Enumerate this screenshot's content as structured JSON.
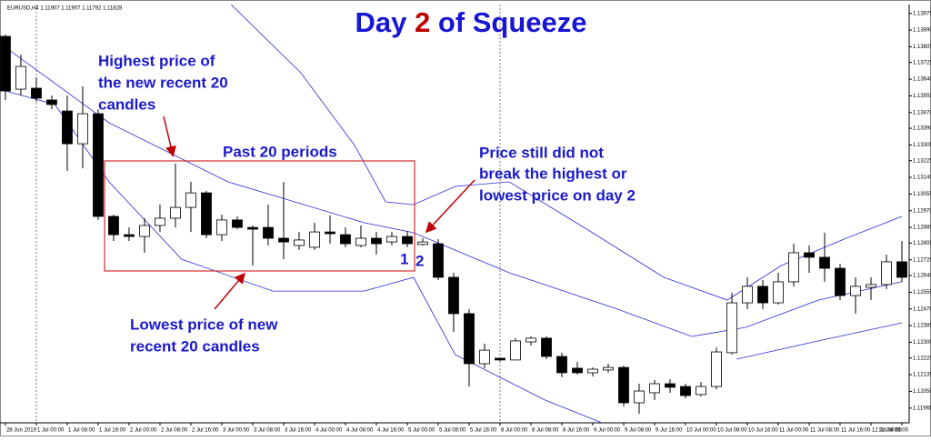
{
  "chart_data": {
    "type": "candlestick",
    "header_info": "EURUSD,H4  1.11907 1.11907 1.11792 1.11828",
    "title": {
      "day": "Day",
      "number": "2",
      "rest": "of Squeeze"
    },
    "annotations": {
      "highest": [
        "Highest price of",
        "the new recent 20",
        "candles"
      ],
      "period": "Past 20 periods",
      "still": [
        "Price still did not",
        "break the highest or",
        "lowest price on day 2"
      ],
      "lowest": [
        "Lowest price of new",
        "recent 20 candles"
      ],
      "day_one": "1",
      "day_two": "2"
    },
    "up_color": "#ffffff",
    "down_color": "#000000",
    "open": [
      1.13858,
      1.13589,
      1.13594,
      1.13534,
      1.13478,
      1.13311,
      1.13464,
      1.12941,
      1.12848,
      1.12839,
      1.12895,
      1.12932,
      1.12987,
      1.13061,
      1.12848,
      1.12923,
      1.12885,
      1.12885,
      1.1283,
      1.12793,
      1.12784,
      1.12862,
      1.12848,
      1.12793,
      1.1283,
      1.12811,
      1.12839,
      1.12798,
      1.12802,
      1.12631,
      1.12446,
      1.12191,
      1.12219,
      1.1221,
      1.12302,
      1.12321,
      1.12228,
      1.12168,
      1.12145,
      1.12159,
      1.12172,
      1.11992,
      1.12043,
      1.12089,
      1.12075,
      1.12034,
      1.12075,
      1.12247,
      1.12501,
      1.12585,
      1.12501,
      1.12608,
      1.12756,
      1.12733,
      1.12677,
      1.12538,
      1.1258,
      1.12594,
      1.1271
    ],
    "high": [
      1.13867,
      1.13765,
      1.13649,
      1.13557,
      1.13557,
      1.13603,
      1.13487,
      1.1295,
      1.12885,
      1.12932,
      1.13001,
      1.1321,
      1.13117,
      1.13071,
      1.1295,
      1.12941,
      1.12895,
      1.13001,
      1.13117,
      1.12862,
      1.12909,
      1.12946,
      1.12885,
      1.12895,
      1.12862,
      1.12862,
      1.12867,
      1.1283,
      1.12825,
      1.12654,
      1.12469,
      1.12293,
      1.12219,
      1.12321,
      1.1233,
      1.1233,
      1.12247,
      1.122,
      1.12172,
      1.12191,
      1.12182,
      1.12089,
      1.12108,
      1.12112,
      1.12089,
      1.12098,
      1.12274,
      1.12552,
      1.12631,
      1.12617,
      1.12654,
      1.12802,
      1.12793,
      1.12858,
      1.127,
      1.12631,
      1.12631,
      1.12747,
      1.12816
    ],
    "low": [
      1.13534,
      1.13557,
      1.13524,
      1.13487,
      1.13173,
      1.13186,
      1.12923,
      1.12816,
      1.12816,
      1.12756,
      1.12862,
      1.12885,
      1.12862,
      1.1283,
      1.12816,
      1.12876,
      1.12691,
      1.12793,
      1.12723,
      1.1277,
      1.1277,
      1.12802,
      1.12784,
      1.12784,
      1.12747,
      1.12793,
      1.12784,
      1.12793,
      1.12617,
      1.12353,
      1.12075,
      1.12168,
      1.12205,
      1.1221,
      1.12284,
      1.12214,
      1.12122,
      1.12135,
      1.12126,
      1.12145,
      1.11973,
      1.11936,
      1.12006,
      1.12043,
      1.12015,
      1.12024,
      1.12061,
      1.12237,
      1.12469,
      1.12469,
      1.12492,
      1.12585,
      1.12654,
      1.12608,
      1.12515,
      1.12446,
      1.12515,
      1.12571,
      1.12608
    ],
    "close": [
      1.1358,
      1.13705,
      1.13543,
      1.13511,
      1.13311,
      1.13464,
      1.12941,
      1.12848,
      1.12839,
      1.12895,
      1.12932,
      1.12987,
      1.13061,
      1.12848,
      1.12923,
      1.12885,
      1.12876,
      1.1283,
      1.12811,
      1.12821,
      1.12862,
      1.12853,
      1.12802,
      1.1283,
      1.12802,
      1.12839,
      1.12802,
      1.12811,
      1.12631,
      1.12446,
      1.12191,
      1.1226,
      1.1221,
      1.12307,
      1.12321,
      1.12228,
      1.12145,
      1.12145,
      1.12163,
      1.12172,
      1.11992,
      1.12052,
      1.12089,
      1.12071,
      1.12029,
      1.12075,
      1.12251,
      1.12501,
      1.12585,
      1.12501,
      1.12608,
      1.12756,
      1.12733,
      1.12677,
      1.12538,
      1.12585,
      1.12594,
      1.1271,
      1.12631
    ],
    "bands": [
      {
        "color": "#2b2bd9",
        "x": [
          14.6,
          19.1,
          22.6,
          24.6,
          26.4,
          29.1,
          32.6,
          37.9,
          42.6,
          46.7,
          50.2,
          54.4,
          58.0
        ],
        "values": [
          1.1402,
          1.13673,
          1.13302,
          1.13015,
          1.13001,
          1.13094,
          1.13117,
          1.12862,
          1.12631,
          1.12515,
          1.12691,
          1.1283,
          1.12941
        ]
      },
      {
        "color": "#2b2bd9",
        "x": [
          0,
          6.7,
          14.4,
          23.2,
          26.4,
          32.6,
          39.6,
          44.4,
          47.9,
          52.6,
          58.0
        ],
        "values": [
          1.13802,
          1.13418,
          1.13117,
          1.12909,
          1.12858,
          1.12654,
          1.12469,
          1.1233,
          1.12376,
          1.12515,
          1.12608
        ]
      },
      {
        "color": "#2b2bd9",
        "x": [
          0,
          3.2,
          6.7,
          11.4,
          17.3,
          23.2,
          26.4,
          29.1,
          34.9,
          39.6,
          43.0,
          47.3,
          52.6,
          58.0
        ],
        "values": [
          1.1358,
          1.13511,
          1.13117,
          1.12723,
          1.12561,
          1.12561,
          1.12631,
          1.12237,
          1.12006,
          1.11858,
          null,
          1.12214,
          1.12307,
          1.12399
        ]
      }
    ],
    "period_separators": [
      2,
      32
    ],
    "xlim": [
      -0.35,
      58.47
    ],
    "ylim": [
      1.1189,
      1.1402
    ],
    "xticks": [
      {
        "value": 0,
        "label": "28 Jun 2019"
      },
      {
        "value": 2,
        "label": "1 Jul 00:00"
      },
      {
        "value": 4,
        "label": "1 Jul 08:00"
      },
      {
        "value": 6,
        "label": "1 Jul 16:00"
      },
      {
        "value": 8,
        "label": "2 Jul 00:00"
      },
      {
        "value": 10,
        "label": "2 Jul 08:00"
      },
      {
        "value": 12,
        "label": "2 Jul 16:00"
      },
      {
        "value": 14,
        "label": "3 Jul 00:00"
      },
      {
        "value": 16,
        "label": "3 Jul 08:00"
      },
      {
        "value": 18,
        "label": "3 Jul 16:00"
      },
      {
        "value": 20,
        "label": "4 Jul 00:00"
      },
      {
        "value": 22,
        "label": "4 Jul 08:00"
      },
      {
        "value": 24,
        "label": "4 Jul 16:00"
      },
      {
        "value": 26,
        "label": "5 Jul 00:00"
      },
      {
        "value": 28,
        "label": "5 Jul 08:00"
      },
      {
        "value": 30,
        "label": "5 Jul 16:00"
      },
      {
        "value": 32,
        "label": "8 Jul 00:00"
      },
      {
        "value": 34,
        "label": "8 Jul 08:00"
      },
      {
        "value": 36,
        "label": "8 Jul 16:00"
      },
      {
        "value": 38,
        "label": "9 Jul 00:00"
      },
      {
        "value": 40,
        "label": "9 Jul 08:00"
      },
      {
        "value": 42,
        "label": "9 Jul 16:00"
      },
      {
        "value": 44,
        "label": "10 Jul 00:00"
      },
      {
        "value": 46,
        "label": "10 Jul 08:00"
      },
      {
        "value": 48,
        "label": "10 Jul 16:00"
      },
      {
        "value": 50,
        "label": "11 Jul 00:00"
      },
      {
        "value": 52,
        "label": "11 Jul 08:00"
      },
      {
        "value": 54,
        "label": "11 Jul 16:00"
      },
      {
        "value": 56,
        "label": "12 Jul 00:00"
      },
      {
        "value": 58,
        "label": "12 Jul 08:00"
      }
    ],
    "yticks": [
      {
        "value": 1.13975,
        "label": "1.13975"
      },
      {
        "value": 1.1389,
        "label": "1.13890"
      },
      {
        "value": 1.13805,
        "label": "1.13805"
      },
      {
        "value": 1.13725,
        "label": "1.13725"
      },
      {
        "value": 1.1364,
        "label": "1.13640"
      },
      {
        "value": 1.13555,
        "label": "1.13555"
      },
      {
        "value": 1.1347,
        "label": "1.13470"
      },
      {
        "value": 1.1339,
        "label": "1.13390"
      },
      {
        "value": 1.13305,
        "label": "1.13305"
      },
      {
        "value": 1.13225,
        "label": "1.13225"
      },
      {
        "value": 1.1314,
        "label": "1.13140"
      },
      {
        "value": 1.13055,
        "label": "1.13055"
      },
      {
        "value": 1.1297,
        "label": "1.12970"
      },
      {
        "value": 1.12885,
        "label": "1.12885"
      },
      {
        "value": 1.12805,
        "label": "1.12805"
      },
      {
        "value": 1.1272,
        "label": "1.12720"
      },
      {
        "value": 1.1264,
        "label": "1.12640"
      },
      {
        "value": 1.12555,
        "label": "1.12555"
      },
      {
        "value": 1.1247,
        "label": "1.12470"
      },
      {
        "value": 1.12385,
        "label": "1.12385"
      },
      {
        "value": 1.123,
        "label": "1.12300"
      },
      {
        "value": 1.1222,
        "label": "1.12220"
      },
      {
        "value": 1.12135,
        "label": "1.12135"
      },
      {
        "value": 1.1205,
        "label": "1.12050"
      },
      {
        "value": 1.11965,
        "label": "1.11965"
      }
    ]
  }
}
